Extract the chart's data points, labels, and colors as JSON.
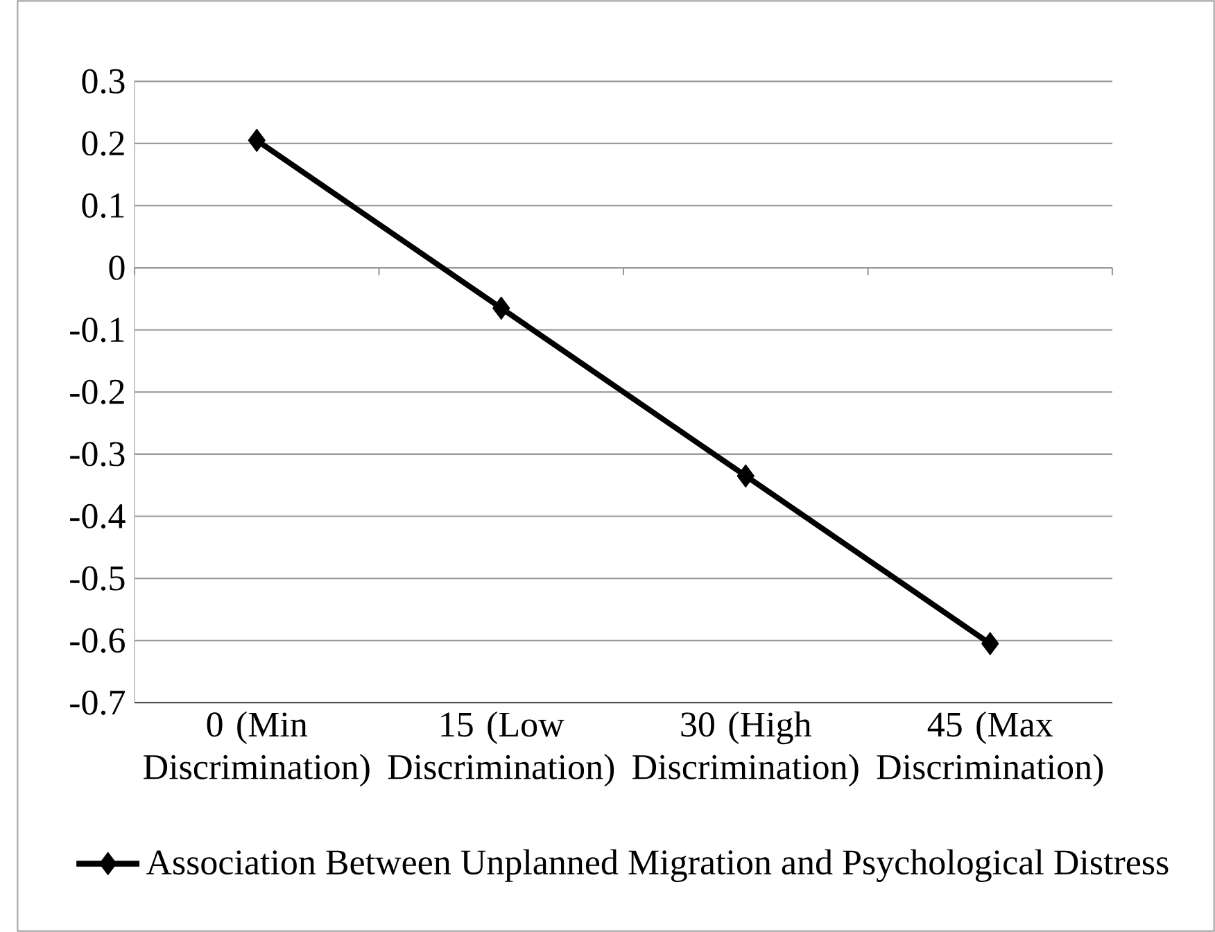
{
  "chart_data": {
    "type": "line",
    "categories": [
      "0 (Min Discrimination)",
      "15 (Low Discrimination)",
      "30 (High Discrimination)",
      "45 (Max Discrimination)"
    ],
    "series": [
      {
        "name": "Association Between Unplanned Migration and Psychological Distress",
        "color": "#000000",
        "values": [
          0.205,
          -0.065,
          -0.335,
          -0.605
        ]
      }
    ],
    "ylim": [
      -0.7,
      0.3
    ],
    "yticks": [
      -0.7,
      -0.6,
      -0.5,
      -0.4,
      -0.3,
      -0.2,
      -0.1,
      0,
      0.1,
      0.2,
      0.3
    ],
    "grid": "y",
    "legend": "bottom",
    "marker": "diamond",
    "line_style": "solid"
  }
}
